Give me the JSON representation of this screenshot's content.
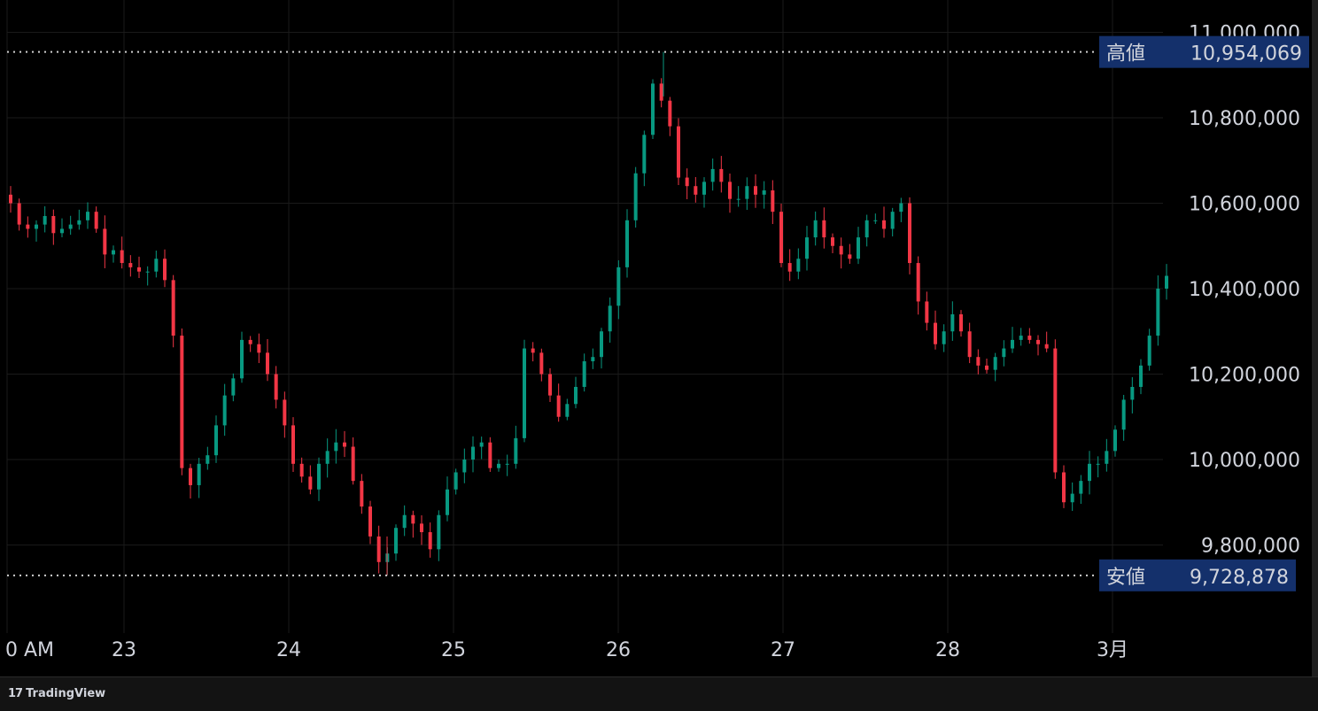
{
  "colors": {
    "up": "#089981",
    "down": "#f23645",
    "grid": "#1a1a1a",
    "label_bg": "#14306b",
    "text": "#d1d4dc"
  },
  "footer": {
    "brand": "TradingView",
    "logo_icon": "tradingview-logo-icon"
  },
  "markers": {
    "high": {
      "label": "高値",
      "value": "10,954,069"
    },
    "low": {
      "label": "安値",
      "value": "9,728,878"
    }
  },
  "chart_data": {
    "type": "candlestick",
    "y_ticks": [
      "11,000,000",
      "10,800,000",
      "10,600,000",
      "10,400,000",
      "10,200,000",
      "10,000,000",
      "9,800,000"
    ],
    "y_tick_values": [
      11000000,
      10800000,
      10600000,
      10400000,
      10200000,
      10000000,
      9800000
    ],
    "x_ticks": [
      "0 AM",
      "23",
      "24",
      "25",
      "26",
      "27",
      "28",
      "3月"
    ],
    "high_value": 10954069,
    "low_value": 9728878,
    "approx_close_path": [
      10600000,
      10550000,
      10540000,
      10550000,
      10570000,
      10530000,
      10540000,
      10550000,
      10560000,
      10580000,
      10540000,
      10480000,
      10490000,
      10460000,
      10450000,
      10440000,
      10440000,
      10470000,
      10420000,
      10290000,
      9980000,
      9940000,
      9990000,
      10010000,
      10080000,
      10150000,
      10190000,
      10280000,
      10270000,
      10250000,
      10200000,
      10140000,
      10080000,
      9990000,
      9960000,
      9930000,
      9990000,
      10020000,
      10040000,
      10030000,
      9950000,
      9890000,
      9820000,
      9760000,
      9780000,
      9840000,
      9870000,
      9850000,
      9830000,
      9790000,
      9870000,
      9930000,
      9970000,
      10000000,
      10030000,
      10040000,
      9980000,
      9990000,
      9990000,
      10050000,
      10260000,
      10250000,
      10200000,
      10150000,
      10100000,
      10130000,
      10170000,
      10230000,
      10240000,
      10300000,
      10360000,
      10450000,
      10560000,
      10670000,
      10760000,
      10880000,
      10840000,
      10780000,
      10660000,
      10640000,
      10620000,
      10650000,
      10680000,
      10650000,
      10610000,
      10610000,
      10640000,
      10620000,
      10630000,
      10580000,
      10460000,
      10440000,
      10470000,
      10520000,
      10560000,
      10520000,
      10500000,
      10480000,
      10470000,
      10520000,
      10560000,
      10560000,
      10540000,
      10580000,
      10600000,
      10460000,
      10370000,
      10320000,
      10270000,
      10300000,
      10340000,
      10300000,
      10240000,
      10220000,
      10210000,
      10240000,
      10260000,
      10280000,
      10290000,
      10280000,
      10270000,
      10260000,
      9970000,
      9900000,
      9920000,
      9950000,
      9990000,
      9990000,
      10020000,
      10070000,
      10140000,
      10170000,
      10220000,
      10290000,
      10400000,
      10430000
    ]
  }
}
